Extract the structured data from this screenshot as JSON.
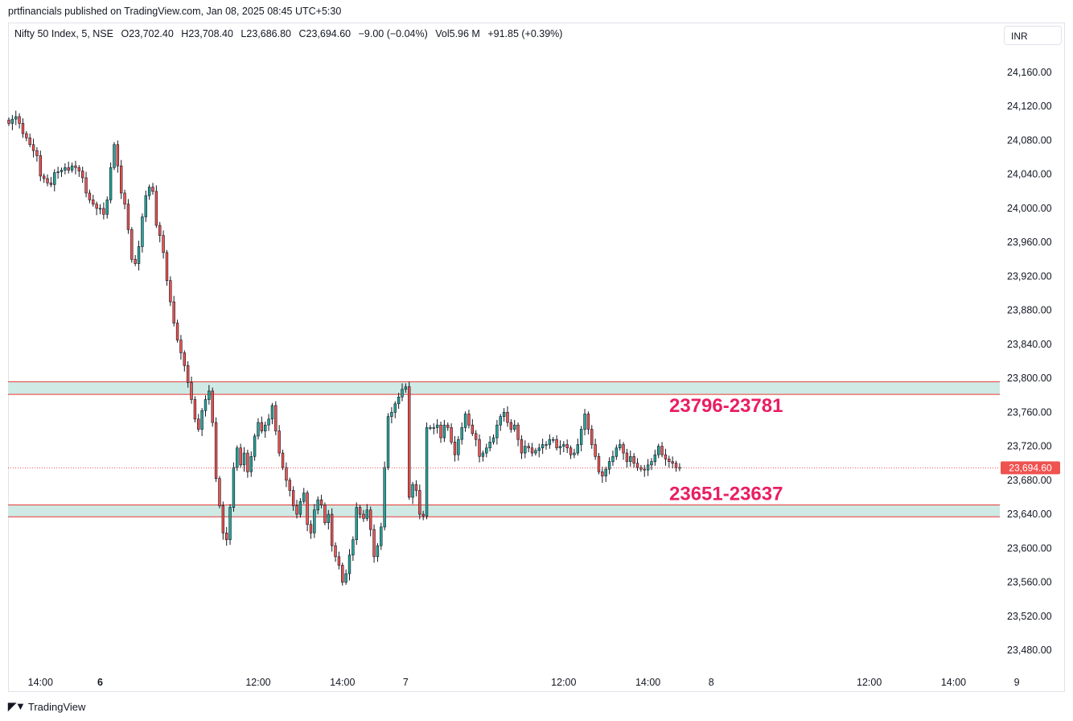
{
  "publisher_line": "prtfinancials published on TradingView.com, Jan 08, 2025 08:45 UTC+5:30",
  "legend": {
    "symbol": "Nifty 50 Index, 5, NSE",
    "open": "O23,702.40",
    "high": "H23,708.40",
    "low": "L23,686.80",
    "close": "C23,694.60",
    "change": "−9.00 (−0.04%)",
    "volume": "Vol5.96 M",
    "extra": "+91.85 (+0.39%)"
  },
  "currency": "INR",
  "brand": "TradingView",
  "colors": {
    "up": "#26a69a",
    "down": "#ef5350",
    "zone_fill": "#cfe9e4",
    "zone_line": "#e53935",
    "zone_label": "#e91e63",
    "price_tag": "#ef5350"
  },
  "chart_data": {
    "type": "candlestick",
    "y_ticks": [
      "24,160.00",
      "24,120.00",
      "24,080.00",
      "24,040.00",
      "24,000.00",
      "23,960.00",
      "23,920.00",
      "23,880.00",
      "23,840.00",
      "23,800.00",
      "23,760.00",
      "23,720.00",
      "23,680.00",
      "23,640.00",
      "23,600.00",
      "23,560.00",
      "23,520.00",
      "23,480.00"
    ],
    "ylim": [
      23440,
      24200
    ],
    "x_labels": [
      {
        "label": "14:00",
        "bold": false,
        "bar": 9
      },
      {
        "label": "6",
        "bold": true,
        "bar": 26
      },
      {
        "label": "12:00",
        "bold": false,
        "bar": 71
      },
      {
        "label": "14:00",
        "bold": false,
        "bar": 95
      },
      {
        "label": "7",
        "bold": false,
        "bar": 113
      },
      {
        "label": "12:00",
        "bold": false,
        "bar": 158
      },
      {
        "label": "14:00",
        "bold": false,
        "bar": 182
      },
      {
        "label": "8",
        "bold": false,
        "bar": 200
      },
      {
        "label": "12:00",
        "bold": false,
        "bar": 245
      },
      {
        "label": "14:00",
        "bold": false,
        "bar": 269
      },
      {
        "label": "9",
        "bold": false,
        "bar": 287
      }
    ],
    "zones": [
      {
        "high": 23796,
        "low": 23781,
        "label": "23796-23781"
      },
      {
        "high": 23651,
        "low": 23637,
        "label": "23651-23637"
      }
    ],
    "last_price": {
      "value": 23694.6,
      "label": "23,694.60"
    },
    "closes": [
      24100,
      24105,
      24108,
      24100,
      24088,
      24083,
      24075,
      24068,
      24062,
      24038,
      24035,
      24030,
      24028,
      24042,
      24043,
      24045,
      24048,
      24045,
      24050,
      24048,
      24044,
      24036,
      24018,
      24010,
      24005,
      24000,
      24000,
      23993,
      24010,
      24048,
      24075,
      24050,
      24018,
      24005,
      23975,
      23940,
      23935,
      23955,
      23990,
      24015,
      24025,
      24020,
      23980,
      23968,
      23948,
      23915,
      23890,
      23865,
      23845,
      23830,
      23815,
      23795,
      23775,
      23752,
      23740,
      23762,
      23775,
      23785,
      23748,
      23682,
      23650,
      23618,
      23610,
      23648,
      23695,
      23718,
      23698,
      23712,
      23690,
      23708,
      23732,
      23748,
      23738,
      23745,
      23752,
      23768,
      23738,
      23712,
      23695,
      23680,
      23668,
      23650,
      23640,
      23655,
      23665,
      23628,
      23618,
      23645,
      23657,
      23651,
      23630,
      23640,
      23603,
      23590,
      23580,
      23560,
      23570,
      23592,
      23610,
      23648,
      23640,
      23635,
      23645,
      23622,
      23590,
      23603,
      23625,
      23695,
      23755,
      23760,
      23770,
      23778,
      23787,
      23790,
      23660,
      23675,
      23668,
      23640,
      23638,
      23742,
      23742,
      23742,
      23745,
      23730,
      23745,
      23742,
      23725,
      23710,
      23728,
      23742,
      23758,
      23745,
      23735,
      23728,
      23708,
      23712,
      23718,
      23725,
      23730,
      23745,
      23755,
      23760,
      23748,
      23740,
      23745,
      23728,
      23712,
      23720,
      23718,
      23712,
      23715,
      23718,
      23722,
      23722,
      23728,
      23728,
      23718,
      23720,
      23722,
      23718,
      23710,
      23712,
      23722,
      23740,
      23758,
      23740,
      23722,
      23708,
      23690,
      23685,
      23693,
      23702,
      23708,
      23718,
      23722,
      23712,
      23702,
      23708,
      23700,
      23695,
      23693,
      23692,
      23698,
      23702,
      23710,
      23720,
      23710,
      23705,
      23702,
      23700,
      23695,
      23694.6
    ]
  }
}
